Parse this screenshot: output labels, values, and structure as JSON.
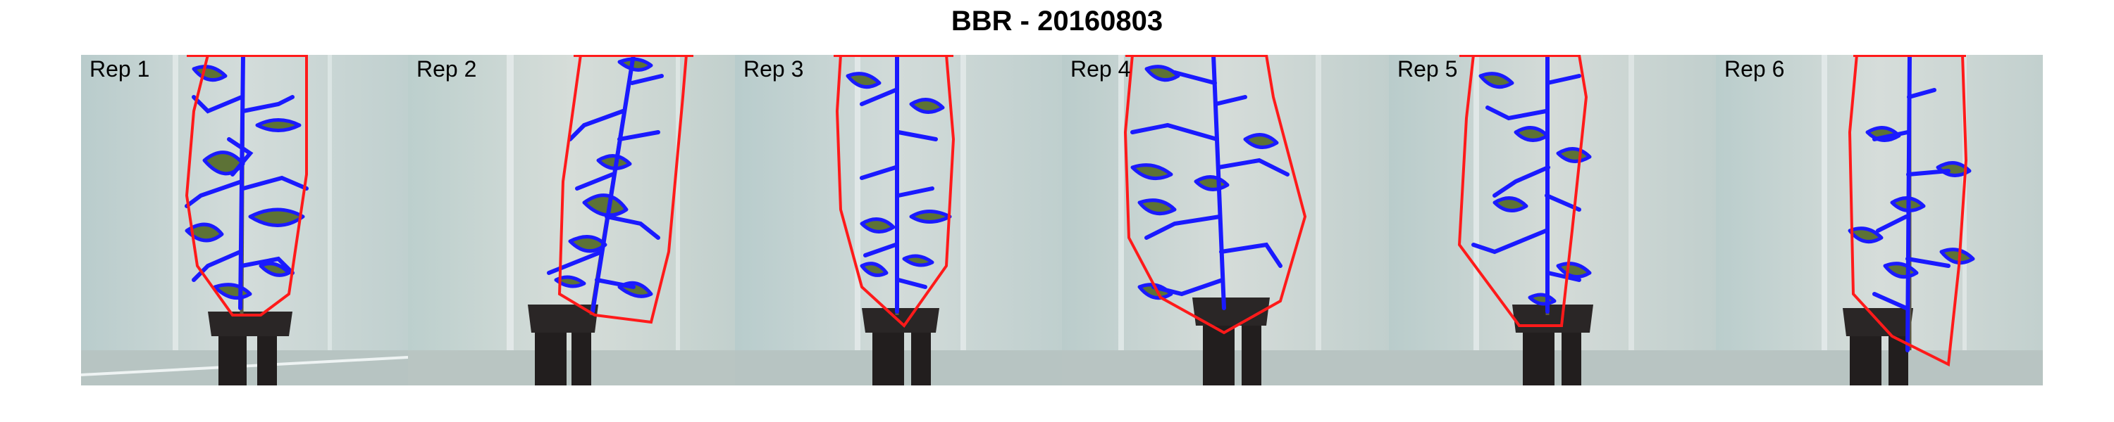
{
  "title": "BBR - 20160803",
  "colors": {
    "hull": "#ff1a1a",
    "contour": "#1a1aff",
    "leaf": "#5d7236",
    "background": "#c4d1d1",
    "pot": "#2a2626"
  },
  "panels": [
    {
      "label": "Rep 1"
    },
    {
      "label": "Rep 2"
    },
    {
      "label": "Rep 3"
    },
    {
      "label": "Rep 4"
    },
    {
      "label": "Rep 5"
    },
    {
      "label": "Rep 6"
    }
  ]
}
